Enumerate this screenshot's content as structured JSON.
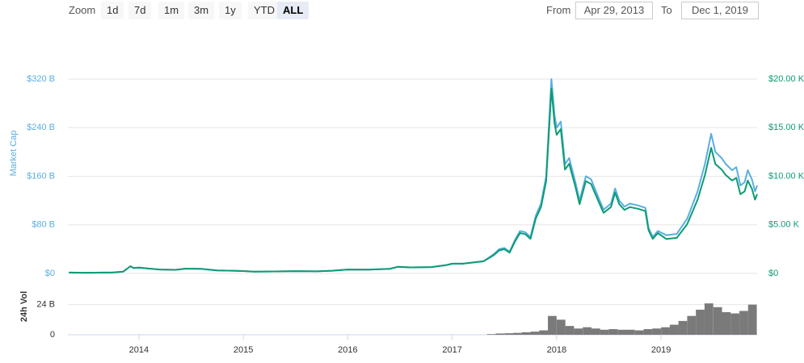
{
  "zoom": {
    "label": "Zoom",
    "buttons": [
      {
        "label": "1d"
      },
      {
        "label": "7d"
      },
      {
        "label": "1m"
      },
      {
        "label": "3m"
      },
      {
        "label": "1y"
      },
      {
        "label": "YTD"
      },
      {
        "label": "ALL",
        "selected": true
      }
    ]
  },
  "range": {
    "from_label": "From",
    "from": "Apr 29, 2013",
    "to_label": "To",
    "to": "Dec 1, 2019"
  },
  "chart_data": [
    {
      "type": "line",
      "ylabel": "Market Cap",
      "grid": true,
      "xlim": [
        2013.32,
        2019.92
      ],
      "x": [
        2013.33,
        2013.5,
        2013.75,
        2013.85,
        2013.92,
        2013.95,
        2014.0,
        2014.1,
        2014.2,
        2014.35,
        2014.45,
        2014.6,
        2014.75,
        2014.9,
        2015.0,
        2015.1,
        2015.3,
        2015.5,
        2015.7,
        2015.85,
        2016.0,
        2016.2,
        2016.4,
        2016.48,
        2016.6,
        2016.8,
        2016.95,
        2017.0,
        2017.1,
        2017.2,
        2017.3,
        2017.4,
        2017.45,
        2017.5,
        2017.55,
        2017.6,
        2017.65,
        2017.7,
        2017.75,
        2017.8,
        2017.85,
        2017.9,
        2017.95,
        2017.98,
        2018.0,
        2018.04,
        2018.08,
        2018.12,
        2018.18,
        2018.22,
        2018.28,
        2018.33,
        2018.4,
        2018.45,
        2018.52,
        2018.56,
        2018.6,
        2018.65,
        2018.7,
        2018.78,
        2018.85,
        2018.88,
        2018.92,
        2018.97,
        2019.05,
        2019.15,
        2019.25,
        2019.35,
        2019.42,
        2019.48,
        2019.52,
        2019.58,
        2019.62,
        2019.68,
        2019.72,
        2019.76,
        2019.8,
        2019.83,
        2019.87,
        2019.9,
        2019.92
      ],
      "ylim": [
        0,
        320
      ],
      "yticks": [
        {
          "value": 0,
          "label": "$0"
        },
        {
          "value": 80,
          "label": "$80 B"
        },
        {
          "value": 160,
          "label": "$160 B"
        },
        {
          "value": 240,
          "label": "$240 B"
        },
        {
          "value": 320,
          "label": "$320 B"
        }
      ],
      "y2lim": [
        0,
        20000
      ],
      "y2ticks": [
        {
          "value": 0,
          "label": "$0"
        },
        {
          "value": 5000,
          "label": "$5.00 K"
        },
        {
          "value": 10000,
          "label": "$10.00 K"
        },
        {
          "value": 15000,
          "label": "$15.00 K"
        },
        {
          "value": 20000,
          "label": "$20.00 K"
        }
      ],
      "series": [
        {
          "color": "#5aaee0",
          "values": [
            1.5,
            1.2,
            1.6,
            3,
            12,
            9,
            9.5,
            8,
            6.5,
            6,
            8,
            7.5,
            5,
            4.5,
            4,
            3,
            3.3,
            3.8,
            3.5,
            4.5,
            6.5,
            6.3,
            7.5,
            11,
            10,
            10.5,
            14,
            16,
            16,
            18,
            20,
            32,
            40,
            42,
            36,
            55,
            70,
            68,
            60,
            95,
            115,
            160,
            320,
            260,
            240,
            250,
            180,
            190,
            150,
            120,
            160,
            155,
            125,
            105,
            115,
            140,
            120,
            110,
            115,
            112,
            108,
            75,
            60,
            70,
            63,
            65,
            90,
            135,
            180,
            230,
            200,
            190,
            180,
            170,
            175,
            145,
            150,
            170,
            155,
            135,
            145
          ]
        },
        {
          "color": "#0b9c74",
          "axis": "y2",
          "values": [
            94,
            75,
            100,
            188,
            750,
            563,
            594,
            500,
            406,
            375,
            500,
            469,
            313,
            281,
            250,
            188,
            206,
            238,
            219,
            281,
            406,
            394,
            469,
            688,
            625,
            656,
            875,
            1000,
            1000,
            1125,
            1250,
            1900,
            2375,
            2495,
            2138,
            3267,
            4158,
            4039,
            3564,
            5643,
            6831,
            9504,
            19008,
            15444,
            14256,
            14850,
            10692,
            11286,
            8910,
            7128,
            9504,
            9207,
            7425,
            6237,
            6831,
            8316,
            7128,
            6534,
            6831,
            6653,
            6415,
            4455,
            3564,
            4158,
            3544,
            3656,
            5063,
            7594,
            10125,
            12938,
            11250,
            10688,
            10125,
            9563,
            9844,
            8156,
            8438,
            9563,
            8719,
            7594,
            8156
          ]
        }
      ]
    },
    {
      "type": "bar",
      "ylabel": "24h Vol",
      "color": "#7a7a7a",
      "xlim": [
        2013.32,
        2019.92
      ],
      "xticks": [
        2014,
        2015,
        2016,
        2017,
        2018,
        2019
      ],
      "x": [
        2017.375,
        2017.458,
        2017.542,
        2017.625,
        2017.708,
        2017.792,
        2017.875,
        2017.958,
        2018.042,
        2018.125,
        2018.208,
        2018.292,
        2018.375,
        2018.458,
        2018.542,
        2018.625,
        2018.708,
        2018.792,
        2018.875,
        2018.958,
        2019.042,
        2019.125,
        2019.208,
        2019.292,
        2019.375,
        2019.458,
        2019.542,
        2019.625,
        2019.708,
        2019.792,
        2019.875
      ],
      "values": [
        0.5,
        1,
        1.2,
        1.5,
        2,
        2.5,
        3.5,
        15,
        12,
        7,
        5,
        6,
        5,
        4,
        4.5,
        4,
        4,
        3.5,
        4.5,
        5,
        6,
        8,
        11,
        15,
        20,
        25,
        22,
        18,
        17,
        19,
        24
      ],
      "ylim": [
        0,
        45
      ],
      "yticks": [
        0,
        {
          "value": 24,
          "label": "24 B"
        }
      ]
    }
  ]
}
